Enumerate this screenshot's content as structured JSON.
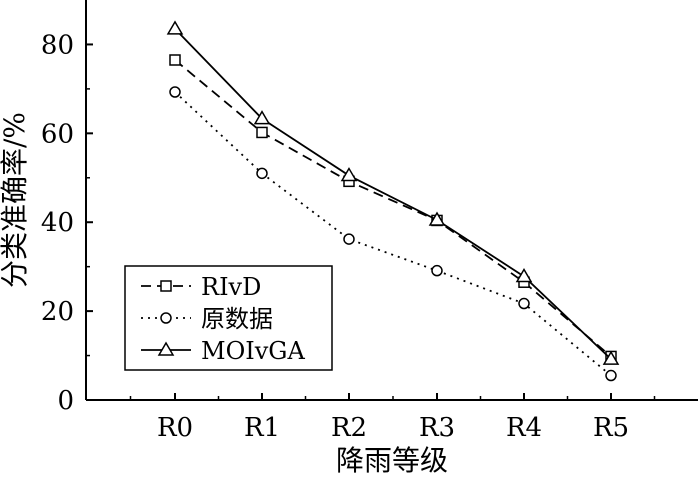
{
  "chart_data": {
    "type": "line",
    "categories": [
      "R0",
      "R1",
      "R2",
      "R3",
      "R4",
      "R5"
    ],
    "xlabel": "降雨等级",
    "ylabel": "分类准确率/%",
    "ylim": [
      0,
      90
    ],
    "yticks": [
      0,
      20,
      40,
      60,
      80
    ],
    "grid": false,
    "legend_position": "bottom-left",
    "series": [
      {
        "name": "RIvD",
        "values": [
          76.5,
          60.2,
          49.2,
          40.4,
          26.5,
          9.8
        ],
        "line_style": "dashed",
        "marker": "square",
        "color": "#000000"
      },
      {
        "name": "原数据",
        "values": [
          69.3,
          51.0,
          36.2,
          29.1,
          21.7,
          5.5
        ],
        "line_style": "dotted",
        "marker": "circle",
        "color": "#000000"
      },
      {
        "name": "MOIvGA",
        "values": [
          83.5,
          63.3,
          50.5,
          40.5,
          27.8,
          9.2
        ],
        "line_style": "solid",
        "marker": "triangle",
        "color": "#000000"
      }
    ]
  }
}
